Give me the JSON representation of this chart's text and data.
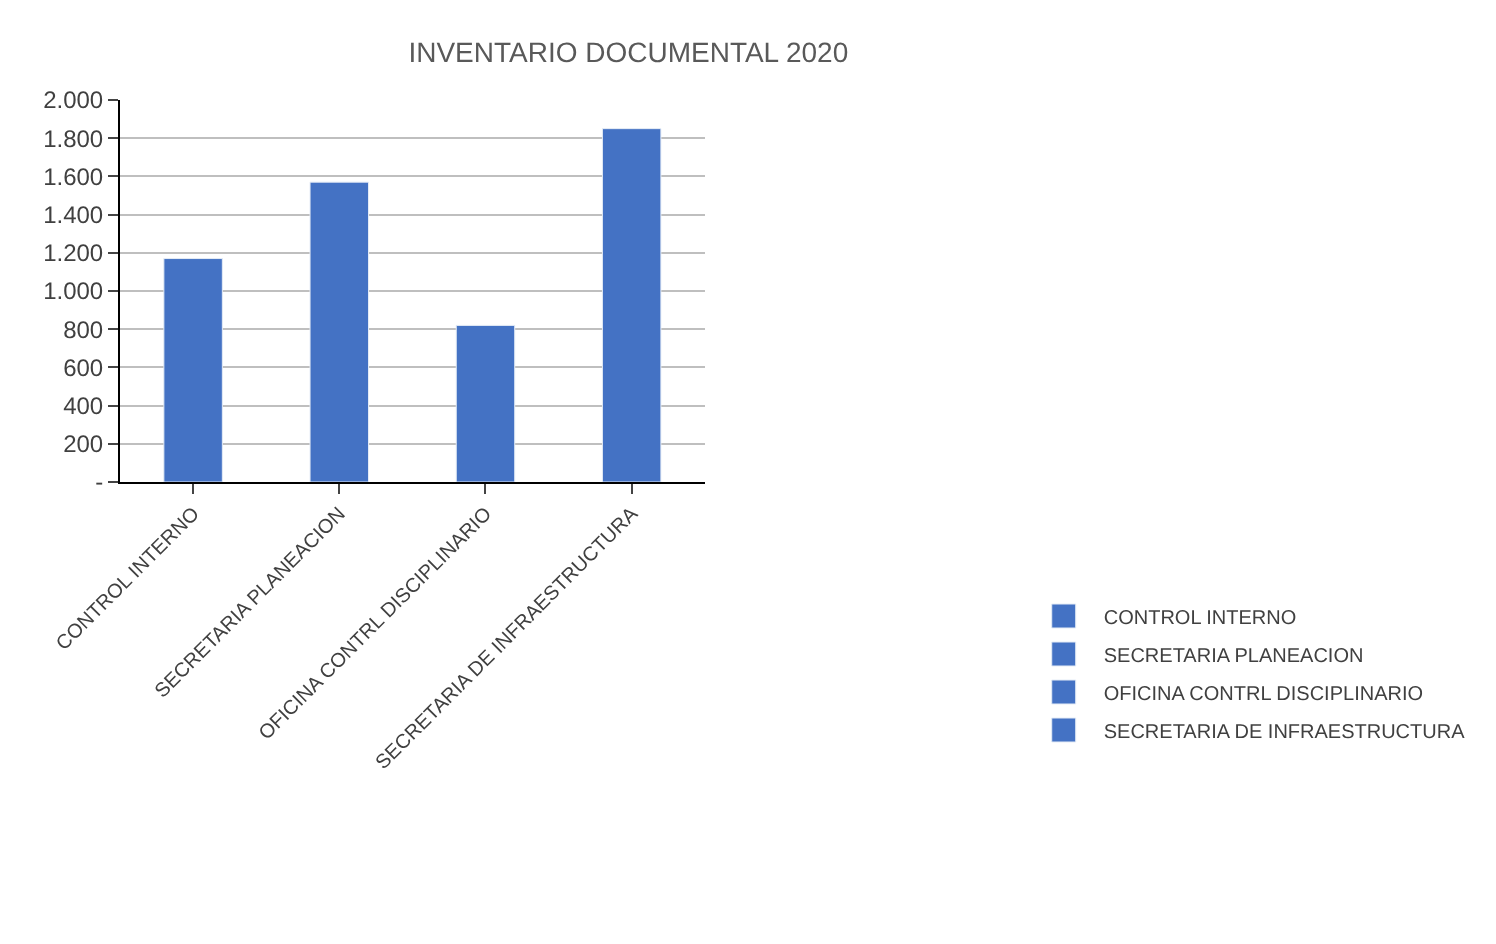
{
  "chart_data": {
    "type": "bar",
    "title": "INVENTARIO DOCUMENTAL 2020",
    "categories": [
      "CONTROL INTERNO",
      "SECRETARIA PLANEACION",
      "OFICINA CONTRL DISCIPLINARIO",
      "SECRETARIA DE INFRAESTRUCTURA"
    ],
    "series": [
      {
        "name": "CONTROL INTERNO",
        "color": "#4472c4",
        "values": [
          1170,
          null,
          null,
          null
        ]
      },
      {
        "name": "SECRETARIA PLANEACION",
        "color": "#4472c4",
        "values": [
          null,
          1570,
          null,
          null
        ]
      },
      {
        "name": "OFICINA CONTRL DISCIPLINARIO",
        "color": "#4472c4",
        "values": [
          null,
          null,
          820,
          null
        ]
      },
      {
        "name": "SECRETARIA DE INFRAESTRUCTURA",
        "color": "#4472c4",
        "values": [
          null,
          null,
          null,
          1850
        ]
      }
    ],
    "ylim": [
      0,
      2000
    ],
    "yticks": [
      {
        "value": 0,
        "label": "-"
      },
      200,
      400,
      600,
      800,
      {
        "value": 1000,
        "label": "1.000"
      },
      {
        "value": 1200,
        "label": "1.200"
      },
      {
        "value": 1400,
        "label": "1.400"
      },
      {
        "value": 1600,
        "label": "1.600"
      },
      {
        "value": 1800,
        "label": "1.800"
      },
      {
        "value": 2000,
        "label": "2.000"
      }
    ],
    "grid": "y",
    "legend": "right"
  }
}
